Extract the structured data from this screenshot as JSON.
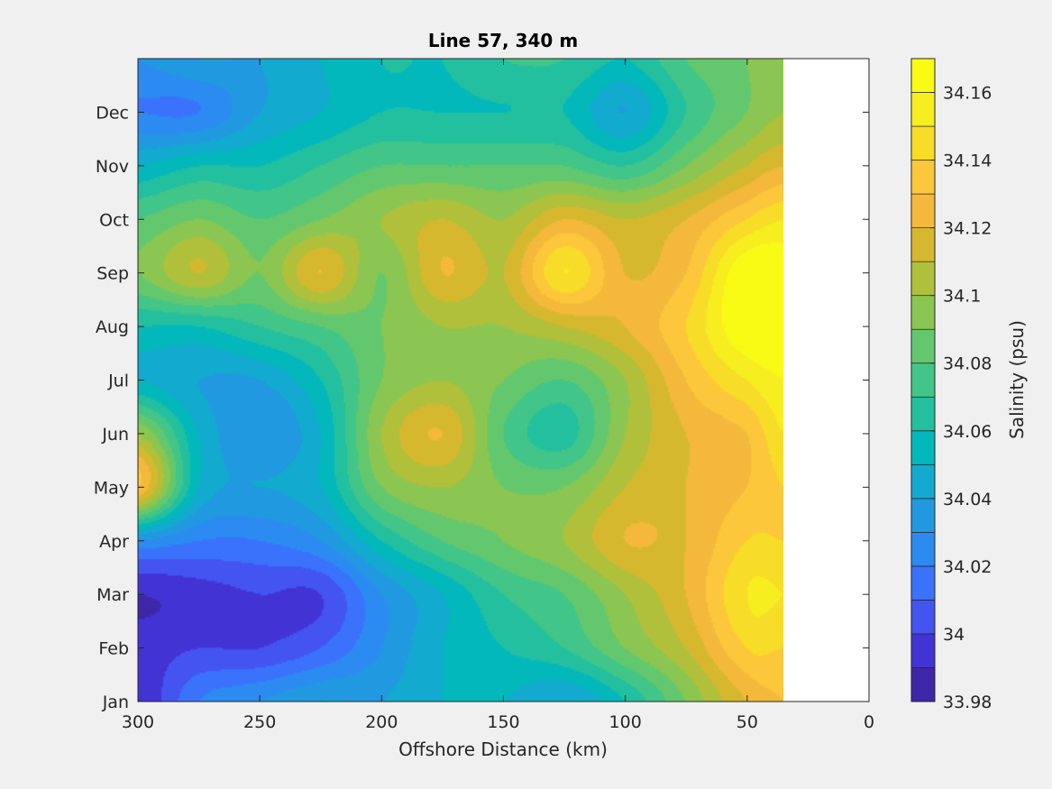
{
  "chart_data": {
    "type": "heatmap",
    "subtype": "filled-contour",
    "title": "Line 57, 340 m",
    "xlabel": "Offshore Distance (km)",
    "ylabel": "",
    "colorbar_label": "Salinity (psu)",
    "x_reversed": true,
    "xlim": [
      300,
      0
    ],
    "ylim": [
      1,
      13
    ],
    "x_ticks": [
      300,
      250,
      200,
      150,
      100,
      50,
      0
    ],
    "y_ticks": [
      {
        "value": 1,
        "label": "Jan"
      },
      {
        "value": 2,
        "label": "Feb"
      },
      {
        "value": 3,
        "label": "Mar"
      },
      {
        "value": 4,
        "label": "Apr"
      },
      {
        "value": 5,
        "label": "May"
      },
      {
        "value": 6,
        "label": "Jun"
      },
      {
        "value": 7,
        "label": "Jul"
      },
      {
        "value": 8,
        "label": "Aug"
      },
      {
        "value": 9,
        "label": "Sep"
      },
      {
        "value": 10,
        "label": "Oct"
      },
      {
        "value": 11,
        "label": "Nov"
      },
      {
        "value": 12,
        "label": "Dec"
      }
    ],
    "clim": [
      33.98,
      34.17
    ],
    "colorbar_ticks": [
      33.98,
      34,
      34.02,
      34.04,
      34.06,
      34.08,
      34.1,
      34.12,
      34.14,
      34.16
    ],
    "contour_levels": [
      33.99,
      34.0,
      34.01,
      34.02,
      34.03,
      34.04,
      34.05,
      34.06,
      34.07,
      34.08,
      34.09,
      34.1,
      34.11,
      34.12,
      34.13,
      34.14,
      34.15,
      34.16
    ],
    "colormap": [
      "#3e26a8",
      "#4233d5",
      "#4354f0",
      "#3a72fc",
      "#2b8bf1",
      "#2099e0",
      "#13aacf",
      "#02b8bb",
      "#22c09f",
      "#42c588",
      "#63c86d",
      "#8ac651",
      "#b0c03a",
      "#d6b82e",
      "#f4b93b",
      "#fcc73a",
      "#f7dc28",
      "#f6ee1f",
      "#f9fb15"
    ],
    "data_extent_x": [
      35,
      300
    ],
    "x": [
      300,
      275,
      250,
      225,
      200,
      175,
      150,
      125,
      100,
      75,
      50,
      35
    ],
    "y": [
      1,
      2,
      3,
      4,
      5,
      6,
      7,
      8,
      9,
      10,
      11,
      12,
      13
    ],
    "z": [
      [
        33.99,
        34.02,
        34.03,
        34.04,
        34.04,
        34.05,
        34.05,
        34.04,
        34.06,
        34.09,
        34.12,
        34.13
      ],
      [
        33.995,
        34.0,
        34.0,
        34.01,
        34.03,
        34.05,
        34.06,
        34.07,
        34.09,
        34.11,
        34.14,
        34.14
      ],
      [
        33.99,
        33.995,
        34.0,
        34.0,
        34.03,
        34.05,
        34.07,
        34.08,
        34.1,
        34.12,
        34.15,
        34.15
      ],
      [
        34.03,
        34.02,
        34.02,
        34.03,
        34.06,
        34.08,
        34.09,
        34.1,
        34.12,
        34.12,
        34.14,
        34.14
      ],
      [
        34.13,
        34.05,
        34.04,
        34.05,
        34.09,
        34.1,
        34.09,
        34.09,
        34.11,
        34.12,
        34.13,
        34.14
      ],
      [
        34.1,
        34.05,
        34.03,
        34.05,
        34.1,
        34.12,
        34.08,
        34.065,
        34.1,
        34.12,
        34.13,
        34.15
      ],
      [
        34.05,
        34.04,
        34.04,
        34.06,
        34.09,
        34.1,
        34.09,
        34.08,
        34.1,
        34.13,
        34.15,
        34.16
      ],
      [
        34.06,
        34.06,
        34.07,
        34.08,
        34.09,
        34.1,
        34.1,
        34.11,
        34.12,
        34.14,
        34.17,
        34.17
      ],
      [
        34.09,
        34.11,
        34.09,
        34.12,
        34.09,
        34.12,
        34.11,
        34.15,
        34.12,
        34.13,
        34.17,
        34.17
      ],
      [
        34.08,
        34.09,
        34.08,
        34.09,
        34.1,
        34.11,
        34.1,
        34.12,
        34.11,
        34.12,
        34.14,
        34.15
      ],
      [
        34.05,
        34.06,
        34.06,
        34.07,
        34.08,
        34.08,
        34.08,
        34.08,
        34.07,
        34.09,
        34.11,
        34.12
      ],
      [
        34.02,
        34.02,
        34.04,
        34.05,
        34.06,
        34.06,
        34.06,
        34.06,
        34.04,
        34.07,
        34.09,
        34.1
      ],
      [
        34.03,
        34.04,
        34.04,
        34.05,
        34.06,
        34.06,
        34.07,
        34.07,
        34.06,
        34.08,
        34.09,
        34.1
      ]
    ]
  }
}
